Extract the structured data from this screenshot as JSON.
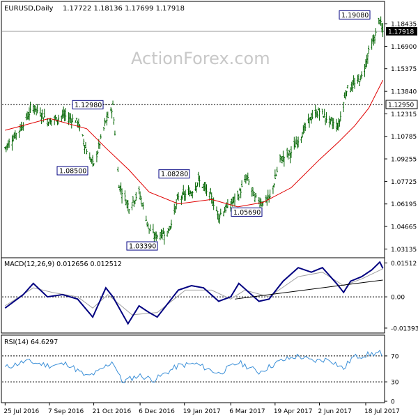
{
  "chart_data": [
    {
      "type": "ohlc",
      "title": "EURUSD,Daily",
      "ohlc_readout": "1.17722 1.18136 1.17699 1.17918",
      "watermark": "ActionForex.com",
      "y_ticks": [
        "1.18435",
        "1.16900",
        "1.15375",
        "1.13840",
        "1.12315",
        "1.10785",
        "1.09255",
        "1.07725",
        "1.06195",
        "1.04665",
        "1.03135"
      ],
      "y_range": [
        1.0254,
        1.1995
      ],
      "current_price_label": "1.17918",
      "current_price": 1.17918,
      "horizontal_level_label": "1.12950",
      "horizontal_level": 1.1295,
      "annotations": [
        {
          "text": "1.19080",
          "value": 1.1908
        },
        {
          "text": "1.12980",
          "value": 1.1298
        },
        {
          "text": "1.08500",
          "value": 1.085
        },
        {
          "text": "1.08280",
          "value": 1.0828
        },
        {
          "text": "1.05690",
          "value": 1.0569
        },
        {
          "text": "1.03390",
          "value": 1.0339
        }
      ],
      "close_path": [
        [
          "2016-07-25",
          1.1
        ],
        [
          "2016-08-08",
          1.112
        ],
        [
          "2016-08-22",
          1.128
        ],
        [
          "2016-09-07",
          1.118
        ],
        [
          "2016-09-21",
          1.122
        ],
        [
          "2016-10-05",
          1.118
        ],
        [
          "2016-10-14",
          1.098
        ],
        [
          "2016-10-21",
          1.088
        ],
        [
          "2016-11-02",
          1.118
        ],
        [
          "2016-11-09",
          1.128
        ],
        [
          "2016-11-15",
          1.075
        ],
        [
          "2016-11-25",
          1.06
        ],
        [
          "2016-12-05",
          1.07
        ],
        [
          "2016-12-15",
          1.045
        ],
        [
          "2016-12-20",
          1.04
        ],
        [
          "2017-01-03",
          1.043
        ],
        [
          "2017-01-13",
          1.066
        ],
        [
          "2017-01-26",
          1.07
        ],
        [
          "2017-02-02",
          1.078
        ],
        [
          "2017-02-15",
          1.066
        ],
        [
          "2017-02-22",
          1.054
        ],
        [
          "2017-03-06",
          1.062
        ],
        [
          "2017-03-13",
          1.067
        ],
        [
          "2017-03-22",
          1.08
        ],
        [
          "2017-03-30",
          1.066
        ],
        [
          "2017-04-07",
          1.063
        ],
        [
          "2017-04-14",
          1.066
        ],
        [
          "2017-04-24",
          1.092
        ],
        [
          "2017-05-05",
          1.097
        ],
        [
          "2017-05-16",
          1.11
        ],
        [
          "2017-05-24",
          1.12
        ],
        [
          "2017-06-02",
          1.125
        ],
        [
          "2017-06-12",
          1.118
        ],
        [
          "2017-06-21",
          1.115
        ],
        [
          "2017-06-29",
          1.14
        ],
        [
          "2017-07-07",
          1.143
        ],
        [
          "2017-07-14",
          1.148
        ],
        [
          "2017-07-21",
          1.165
        ],
        [
          "2017-07-27",
          1.175
        ],
        [
          "2017-08-01",
          1.188
        ],
        [
          "2017-08-03",
          1.18
        ],
        [
          "2017-08-04",
          1.179
        ]
      ],
      "moving_average": [
        [
          "2016-07-25",
          1.112
        ],
        [
          "2016-09-07",
          1.12
        ],
        [
          "2016-10-14",
          1.113
        ],
        [
          "2016-11-02",
          1.1
        ],
        [
          "2016-11-25",
          1.085
        ],
        [
          "2016-12-15",
          1.07
        ],
        [
          "2017-01-13",
          1.062
        ],
        [
          "2017-02-15",
          1.065
        ],
        [
          "2017-03-13",
          1.06
        ],
        [
          "2017-04-07",
          1.063
        ],
        [
          "2017-05-05",
          1.073
        ],
        [
          "2017-06-02",
          1.092
        ],
        [
          "2017-06-21",
          1.104
        ],
        [
          "2017-07-07",
          1.115
        ],
        [
          "2017-07-21",
          1.127
        ],
        [
          "2017-08-04",
          1.146
        ]
      ]
    },
    {
      "type": "line",
      "title": "MACD(12,26,9) 0.012656 0.012512",
      "y_ticks": [
        "0.01512",
        "0.00",
        "-0.01393S"
      ],
      "y_range": [
        -0.0155,
        0.0168
      ],
      "zero_line": 0,
      "macd": [
        [
          "2016-07-25",
          -0.005
        ],
        [
          "2016-08-12",
          0.001
        ],
        [
          "2016-08-22",
          0.006
        ],
        [
          "2016-09-05",
          0.0
        ],
        [
          "2016-09-20",
          0.001
        ],
        [
          "2016-10-05",
          -0.001
        ],
        [
          "2016-10-20",
          -0.009
        ],
        [
          "2016-11-02",
          0.004
        ],
        [
          "2016-11-09",
          0.0
        ],
        [
          "2016-11-24",
          -0.012
        ],
        [
          "2016-12-05",
          -0.004
        ],
        [
          "2016-12-15",
          -0.007
        ],
        [
          "2016-12-23",
          -0.009
        ],
        [
          "2017-01-13",
          0.003
        ],
        [
          "2017-01-26",
          0.005
        ],
        [
          "2017-02-07",
          0.004
        ],
        [
          "2017-02-22",
          -0.002
        ],
        [
          "2017-03-06",
          0.0
        ],
        [
          "2017-03-14",
          0.006
        ],
        [
          "2017-04-03",
          -0.002
        ],
        [
          "2017-04-13",
          -0.001
        ],
        [
          "2017-04-27",
          0.007
        ],
        [
          "2017-05-12",
          0.013
        ],
        [
          "2017-05-25",
          0.011
        ],
        [
          "2017-06-05",
          0.013
        ],
        [
          "2017-06-19",
          0.006
        ],
        [
          "2017-06-26",
          0.002
        ],
        [
          "2017-07-03",
          0.007
        ],
        [
          "2017-07-14",
          0.009
        ],
        [
          "2017-07-24",
          0.012
        ],
        [
          "2017-08-01",
          0.0155
        ],
        [
          "2017-08-04",
          0.0127
        ]
      ],
      "signal": [
        [
          "2016-07-25",
          -0.004
        ],
        [
          "2016-08-22",
          0.004
        ],
        [
          "2016-09-10",
          0.002
        ],
        [
          "2016-10-05",
          0.0
        ],
        [
          "2016-10-20",
          -0.005
        ],
        [
          "2016-11-04",
          0.001
        ],
        [
          "2016-11-28",
          -0.008
        ],
        [
          "2016-12-23",
          -0.007
        ],
        [
          "2017-01-20",
          0.003
        ],
        [
          "2017-02-15",
          0.003
        ],
        [
          "2017-03-06",
          -0.001
        ],
        [
          "2017-03-20",
          0.003
        ],
        [
          "2017-04-13",
          0.0
        ],
        [
          "2017-05-12",
          0.009
        ],
        [
          "2017-06-05",
          0.011
        ],
        [
          "2017-06-26",
          0.005
        ],
        [
          "2017-07-14",
          0.008
        ],
        [
          "2017-08-04",
          0.0125
        ]
      ],
      "trendline": [
        [
          "2017-03-10",
          -0.001
        ],
        [
          "2017-08-04",
          0.0075
        ]
      ]
    },
    {
      "type": "line",
      "title": "RSI(14) 64.6297",
      "y_ticks": [
        "70",
        "30",
        "0"
      ],
      "y_range": [
        0,
        100
      ],
      "levels": [
        70,
        30
      ],
      "rsi": [
        [
          "2016-07-25",
          52
        ],
        [
          "2016-08-15",
          62
        ],
        [
          "2016-09-07",
          55
        ],
        [
          "2016-09-25",
          58
        ],
        [
          "2016-10-14",
          38
        ],
        [
          "2016-10-25",
          45
        ],
        [
          "2016-11-09",
          62
        ],
        [
          "2016-11-18",
          30
        ],
        [
          "2016-12-05",
          40
        ],
        [
          "2016-12-20",
          33
        ],
        [
          "2017-01-13",
          55
        ],
        [
          "2017-01-30",
          58
        ],
        [
          "2017-02-22",
          43
        ],
        [
          "2017-03-14",
          60
        ],
        [
          "2017-04-03",
          45
        ],
        [
          "2017-04-24",
          62
        ],
        [
          "2017-05-12",
          70
        ],
        [
          "2017-05-26",
          62
        ],
        [
          "2017-06-12",
          65
        ],
        [
          "2017-06-26",
          50
        ],
        [
          "2017-07-05",
          68
        ],
        [
          "2017-07-20",
          72
        ],
        [
          "2017-08-01",
          75
        ],
        [
          "2017-08-04",
          64.6
        ]
      ]
    }
  ],
  "x_ticks": [
    {
      "label": "25 Jul 2016",
      "date": "2016-07-25"
    },
    {
      "label": "7 Sep 2016",
      "date": "2016-09-07"
    },
    {
      "label": "21 Oct 2016",
      "date": "2016-10-21"
    },
    {
      "label": "6 Dec 2016",
      "date": "2016-12-06"
    },
    {
      "label": "19 Jan 2017",
      "date": "2017-01-19"
    },
    {
      "label": "6 Mar 2017",
      "date": "2017-03-06"
    },
    {
      "label": "19 Apr 2017",
      "date": "2017-04-19"
    },
    {
      "label": "2 Jun 2017",
      "date": "2017-06-02"
    },
    {
      "label": "18 Jul 2017",
      "date": "2017-07-18"
    }
  ],
  "x_range": [
    "2016-07-22",
    "2017-08-05"
  ],
  "colors": {
    "price": "#006400",
    "moving_average": "#e00000",
    "macd": "#000080",
    "signal": "#a0a0a0",
    "rsi": "#3a8fd8",
    "grid": "#000000",
    "watermark": "#c8c8c8"
  }
}
